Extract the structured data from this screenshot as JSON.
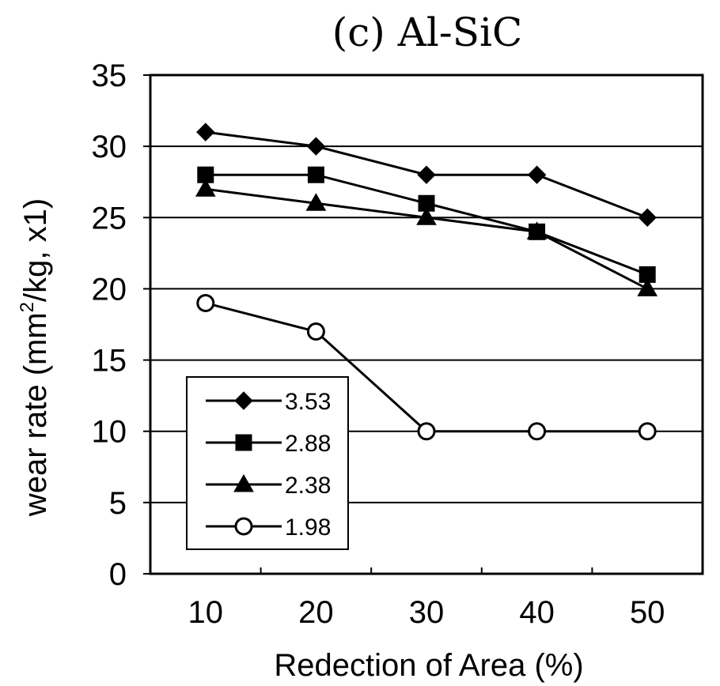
{
  "chart_data": {
    "type": "line",
    "title": "(c) Al-SiC",
    "xlabel": "Redection of Area (%)",
    "ylabel_main": "wear rate (mm",
    "ylabel_sup": "2",
    "ylabel_tail": "/kg, x1)",
    "x": [
      10,
      20,
      30,
      40,
      50
    ],
    "x_tick_labels": [
      "10",
      "20",
      "30",
      "40",
      "50"
    ],
    "xlim": [
      5,
      55
    ],
    "ylim": [
      0,
      35
    ],
    "y_ticks": [
      0,
      5,
      10,
      15,
      20,
      25,
      30,
      35
    ],
    "y_tick_labels": [
      "0",
      "5",
      "10",
      "15",
      "20",
      "25",
      "30",
      "35"
    ],
    "grid": "horizontal",
    "legend_position": "bottom-left",
    "series": [
      {
        "name": "3.53",
        "marker": "diamond",
        "values": [
          31,
          30,
          28,
          28,
          25
        ]
      },
      {
        "name": "2.88",
        "marker": "square",
        "values": [
          28,
          28,
          26,
          24,
          21
        ]
      },
      {
        "name": "2.38",
        "marker": "triangle",
        "values": [
          27,
          26,
          25,
          24,
          20
        ]
      },
      {
        "name": "1.98",
        "marker": "open-circle",
        "values": [
          19,
          17,
          10,
          10,
          10
        ]
      }
    ]
  }
}
